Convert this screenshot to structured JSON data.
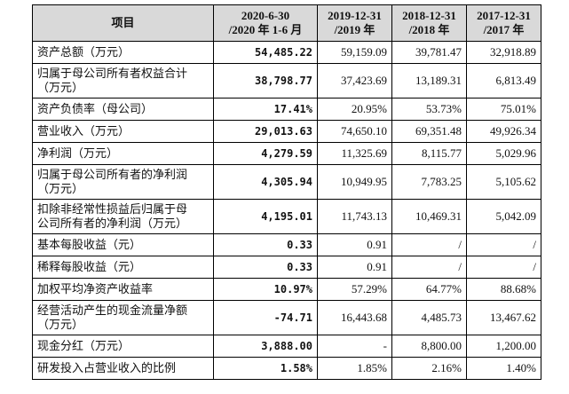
{
  "table": {
    "header": [
      [
        "项目"
      ],
      [
        "2020-6-30",
        "/2020 年 1-6 月"
      ],
      [
        "2019-12-31",
        "/2019 年"
      ],
      [
        "2018-12-31",
        "/2018 年"
      ],
      [
        "2017-12-31",
        "/2017 年"
      ]
    ],
    "rows": [
      [
        [
          "资产总额（万元）"
        ],
        "54,485.22",
        "59,159.09",
        "39,781.47",
        "32,918.89"
      ],
      [
        [
          "归属于母公司所有者权益合计",
          "（万元）"
        ],
        "38,798.77",
        "37,423.69",
        "13,189.31",
        "6,813.49"
      ],
      [
        [
          "资产负债率（母公司）"
        ],
        "17.41%",
        "20.95%",
        "53.73%",
        "75.01%"
      ],
      [
        [
          "营业收入（万元）"
        ],
        "29,013.63",
        "74,650.10",
        "69,351.48",
        "49,926.34"
      ],
      [
        [
          "净利润（万元）"
        ],
        "4,279.59",
        "11,325.69",
        "8,115.77",
        "5,029.96"
      ],
      [
        [
          "归属于母公司所有者的净利润",
          "（万元）"
        ],
        "4,305.94",
        "10,949.95",
        "7,783.25",
        "5,105.62"
      ],
      [
        [
          "扣除非经常性损益后归属于母",
          "公司所有者的净利润（万元）"
        ],
        "4,195.01",
        "11,743.13",
        "10,469.31",
        "5,042.09"
      ],
      [
        [
          "基本每股收益（元）"
        ],
        "0.33",
        "0.91",
        "/",
        "/"
      ],
      [
        [
          "稀释每股收益（元）"
        ],
        "0.33",
        "0.91",
        "/",
        "/"
      ],
      [
        [
          "加权平均净资产收益率"
        ],
        "10.97%",
        "57.29%",
        "64.77%",
        "88.68%"
      ],
      [
        [
          "经营活动产生的现金流量净额",
          "（万元）"
        ],
        "-74.71",
        "16,443.68",
        "4,485.73",
        "13,467.62"
      ],
      [
        [
          "现金分红（万元）"
        ],
        "3,888.00",
        "-",
        "8,800.00",
        "1,200.00"
      ],
      [
        [
          "研发投入占营业收入的比例"
        ],
        "1.58%",
        "1.85%",
        "2.16%",
        "1.40%"
      ]
    ]
  }
}
